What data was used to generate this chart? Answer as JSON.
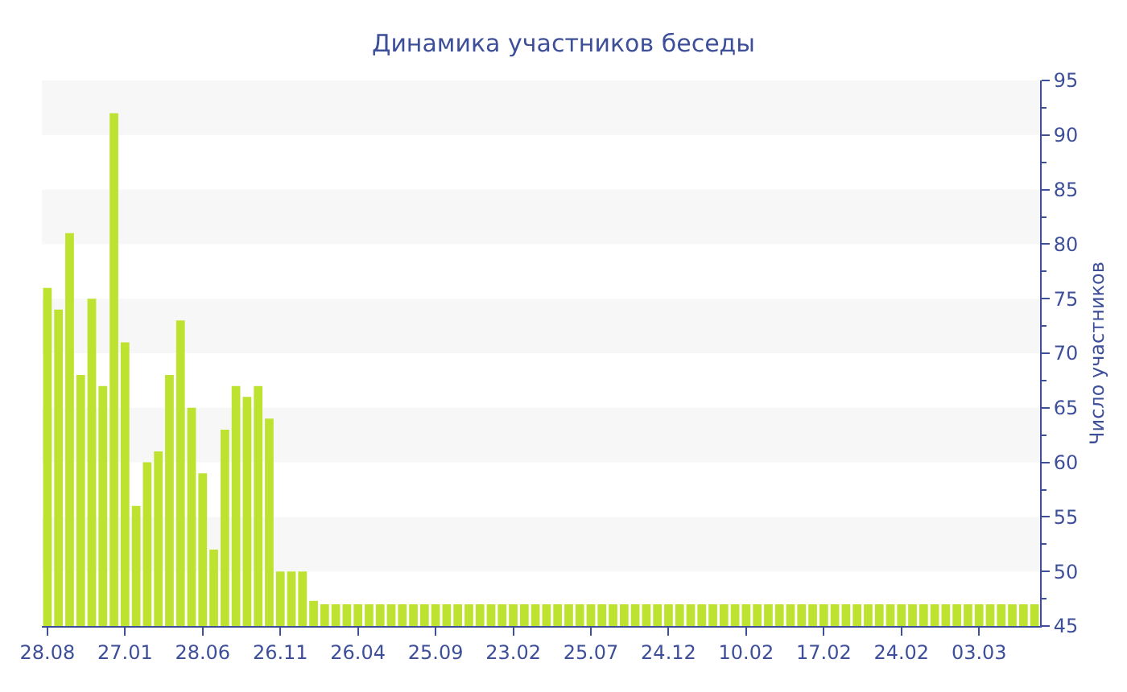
{
  "chart_data": {
    "type": "bar",
    "title": "Динамика участников беседы",
    "ylabel": "Число участников",
    "categories": [
      "28.08",
      null,
      null,
      null,
      null,
      null,
      null,
      "27.01",
      null,
      null,
      null,
      null,
      null,
      null,
      "28.06",
      null,
      null,
      null,
      null,
      null,
      null,
      "26.11",
      null,
      null,
      null,
      null,
      null,
      null,
      "26.04",
      null,
      null,
      null,
      null,
      null,
      null,
      "25.09",
      null,
      null,
      null,
      null,
      null,
      null,
      "23.02",
      null,
      null,
      null,
      null,
      null,
      null,
      "25.07",
      null,
      null,
      null,
      null,
      null,
      null,
      "24.12",
      null,
      null,
      null,
      null,
      null,
      null,
      "10.02",
      null,
      null,
      null,
      null,
      null,
      null,
      "17.02",
      null,
      null,
      null,
      null,
      null,
      null,
      "24.02",
      null,
      null,
      null,
      null,
      null,
      null,
      "03.03",
      null,
      null,
      null,
      null,
      null
    ],
    "values": [
      76,
      74,
      81,
      68,
      75,
      67,
      92,
      71,
      56,
      60,
      61,
      68,
      73,
      65,
      59,
      52,
      63,
      67,
      66,
      67,
      64,
      50,
      50,
      50,
      47.3,
      47,
      47,
      47,
      47,
      47,
      47,
      47,
      47,
      47,
      47,
      47,
      47,
      47,
      47,
      47,
      47,
      47,
      47,
      47,
      47,
      47,
      47,
      47,
      47,
      47,
      47,
      47,
      47,
      47,
      47,
      47,
      47,
      47,
      47,
      47,
      47,
      47,
      47,
      47,
      47,
      47,
      47,
      47,
      47,
      47,
      47,
      47,
      47,
      47,
      47,
      47,
      47,
      47,
      47,
      47,
      47,
      47,
      47,
      47,
      47,
      47,
      47,
      47,
      47,
      47
    ],
    "color": "#bde22f",
    "ylim": [
      45,
      95
    ],
    "yticks": [
      45,
      50,
      55,
      60,
      65,
      70,
      75,
      80,
      85,
      90,
      95
    ],
    "bands": [
      {
        "axis": "y",
        "from": 50,
        "to": 55,
        "color": "#f7f7f7"
      },
      {
        "axis": "y",
        "from": 60,
        "to": 65,
        "color": "#f7f7f7"
      },
      {
        "axis": "y",
        "from": 70,
        "to": 75,
        "color": "#f7f7f7"
      },
      {
        "axis": "y",
        "from": 80,
        "to": 85,
        "color": "#f7f7f7"
      },
      {
        "axis": "y",
        "from": 90,
        "to": 95,
        "color": "#f7f7f7"
      }
    ]
  }
}
